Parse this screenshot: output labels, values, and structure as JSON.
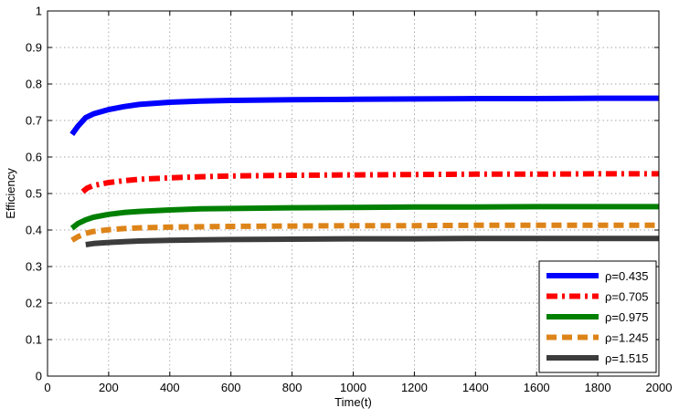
{
  "chart_data": {
    "type": "line",
    "title": "",
    "xlabel": "Time(t)",
    "ylabel": "Efficiency",
    "xlim": [
      0,
      2000
    ],
    "ylim": [
      0,
      1
    ],
    "xticks": [
      0,
      200,
      400,
      600,
      800,
      1000,
      1200,
      1400,
      1600,
      1800,
      2000
    ],
    "yticks": [
      0,
      0.1,
      0.2,
      0.3,
      0.4,
      0.5,
      0.6,
      0.7,
      0.8,
      0.9,
      1
    ],
    "grid": true,
    "legend_position": "bottom-right",
    "series": [
      {
        "name": "ρ=0.435",
        "color": "#0000ff",
        "style": "solid",
        "x": [
          80,
          100,
          125,
          150,
          200,
          250,
          300,
          400,
          500,
          600,
          800,
          1000,
          1200,
          1400,
          1600,
          1800,
          2000
        ],
        "values": [
          0.662,
          0.685,
          0.708,
          0.718,
          0.73,
          0.738,
          0.744,
          0.75,
          0.753,
          0.755,
          0.757,
          0.758,
          0.759,
          0.76,
          0.76,
          0.761,
          0.761
        ]
      },
      {
        "name": "ρ=0.705",
        "color": "#ff0000",
        "style": "dashdot",
        "x": [
          115,
          130,
          150,
          200,
          250,
          300,
          400,
          500,
          600,
          800,
          1000,
          1200,
          1400,
          1600,
          1800,
          2000
        ],
        "values": [
          0.505,
          0.515,
          0.522,
          0.53,
          0.535,
          0.539,
          0.543,
          0.546,
          0.548,
          0.55,
          0.551,
          0.552,
          0.553,
          0.553,
          0.554,
          0.554
        ]
      },
      {
        "name": "ρ=0.975",
        "color": "#008000",
        "style": "solid",
        "x": [
          80,
          100,
          125,
          150,
          200,
          250,
          300,
          400,
          500,
          600,
          800,
          1000,
          1200,
          1400,
          1600,
          1800,
          2000
        ],
        "values": [
          0.405,
          0.418,
          0.428,
          0.435,
          0.443,
          0.448,
          0.451,
          0.455,
          0.458,
          0.459,
          0.461,
          0.462,
          0.463,
          0.463,
          0.464,
          0.464,
          0.464
        ]
      },
      {
        "name": "ρ=1.245",
        "color": "#dd8419",
        "style": "dashed",
        "x": [
          80,
          100,
          125,
          150,
          200,
          250,
          300,
          400,
          500,
          600,
          800,
          1000,
          1200,
          1400,
          1600,
          1800,
          2000
        ],
        "values": [
          0.372,
          0.382,
          0.391,
          0.396,
          0.401,
          0.404,
          0.406,
          0.408,
          0.409,
          0.41,
          0.411,
          0.412,
          0.412,
          0.413,
          0.413,
          0.413,
          0.413
        ]
      },
      {
        "name": "ρ=1.515",
        "color": "#3c3c3c",
        "style": "solid",
        "x": [
          125,
          150,
          200,
          250,
          300,
          400,
          500,
          600,
          800,
          1000,
          1200,
          1400,
          1600,
          1800,
          2000
        ],
        "values": [
          0.36,
          0.363,
          0.366,
          0.368,
          0.37,
          0.372,
          0.373,
          0.374,
          0.375,
          0.376,
          0.376,
          0.377,
          0.377,
          0.377,
          0.377
        ]
      }
    ]
  }
}
